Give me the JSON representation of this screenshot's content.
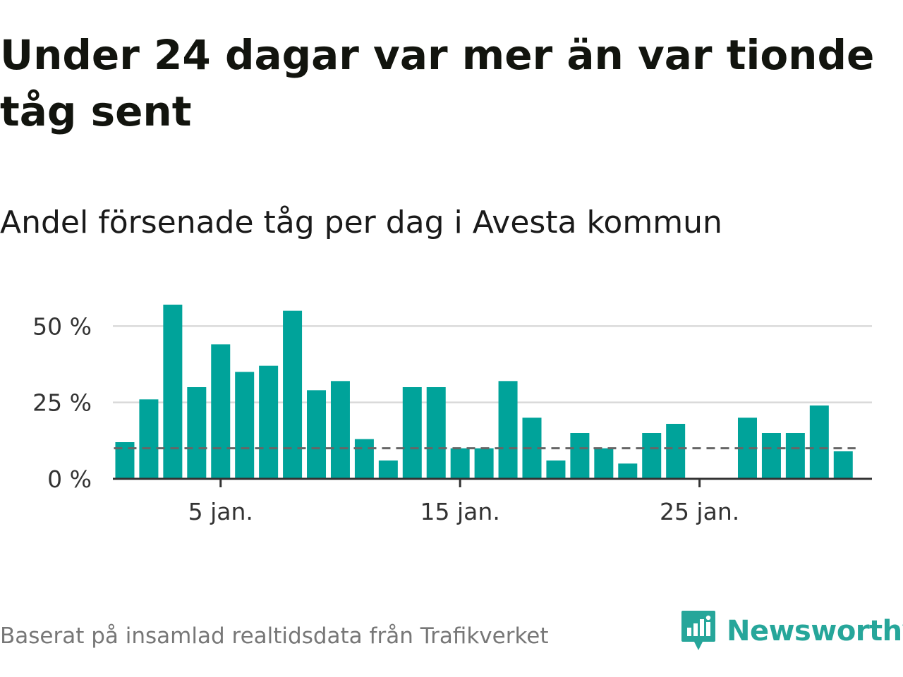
{
  "header": {
    "title": "Under 24 dagar var mer än var tionde tåg sent",
    "subtitle": "Andel försenade tåg per dag i Avesta kommun"
  },
  "footer": {
    "source": "Baserat på insamlad realtidsdata från Trafikverket",
    "brand": "Newsworthy"
  },
  "colors": {
    "bar": "#00a39a",
    "reference_line": "#666666",
    "grid": "#d9d9d9",
    "axis": "#333333",
    "brand": "#26a69a"
  },
  "chart_data": {
    "type": "bar",
    "x": [
      1,
      2,
      3,
      4,
      5,
      6,
      7,
      8,
      9,
      10,
      11,
      12,
      13,
      14,
      15,
      16,
      17,
      18,
      19,
      20,
      21,
      22,
      23,
      24,
      25,
      26,
      27,
      28,
      29,
      30,
      31
    ],
    "values": [
      12,
      26,
      57,
      30,
      44,
      35,
      37,
      55,
      29,
      32,
      13,
      6,
      30,
      30,
      10,
      10,
      32,
      20,
      6,
      15,
      10,
      5,
      15,
      18,
      0,
      0,
      20,
      15,
      15,
      24,
      9
    ],
    "reference_line": 10,
    "ylim": [
      0,
      57
    ],
    "yticks": [
      0,
      25,
      50
    ],
    "ytick_labels": [
      "0 %",
      "25 %",
      "50 %"
    ],
    "xticks": [
      5,
      15,
      25
    ],
    "xtick_labels": [
      "5 jan.",
      "15 jan.",
      "25 jan."
    ],
    "grid": true,
    "legend": "none"
  }
}
